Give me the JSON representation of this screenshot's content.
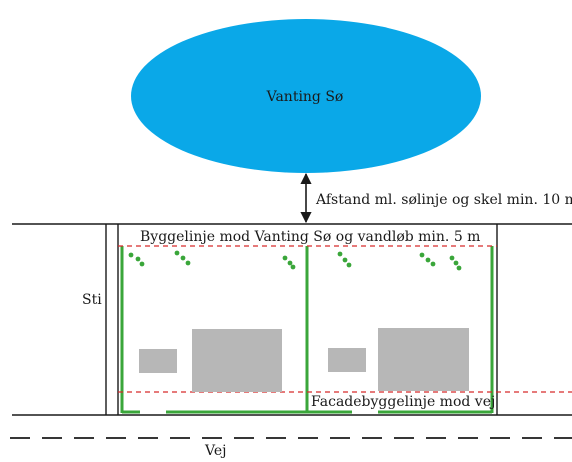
{
  "labels": {
    "lake": "Vanting Sø",
    "distance": "Afstand ml. sølinje og skel min. 10 m",
    "building_line_lake": "Byggelinje mod Vanting Sø og vandløb min. 5 m",
    "path": "Sti",
    "facade_line": "Facadebyggelinje mod vej",
    "road": "Vej"
  },
  "colors": {
    "lake": "#0aa8e8",
    "lot_border": "#3aa63a",
    "tree_dots": "#3aa63a",
    "building": "#b7b7b7",
    "building_line": "#d62a2a",
    "lines": "#1a1a1a"
  }
}
